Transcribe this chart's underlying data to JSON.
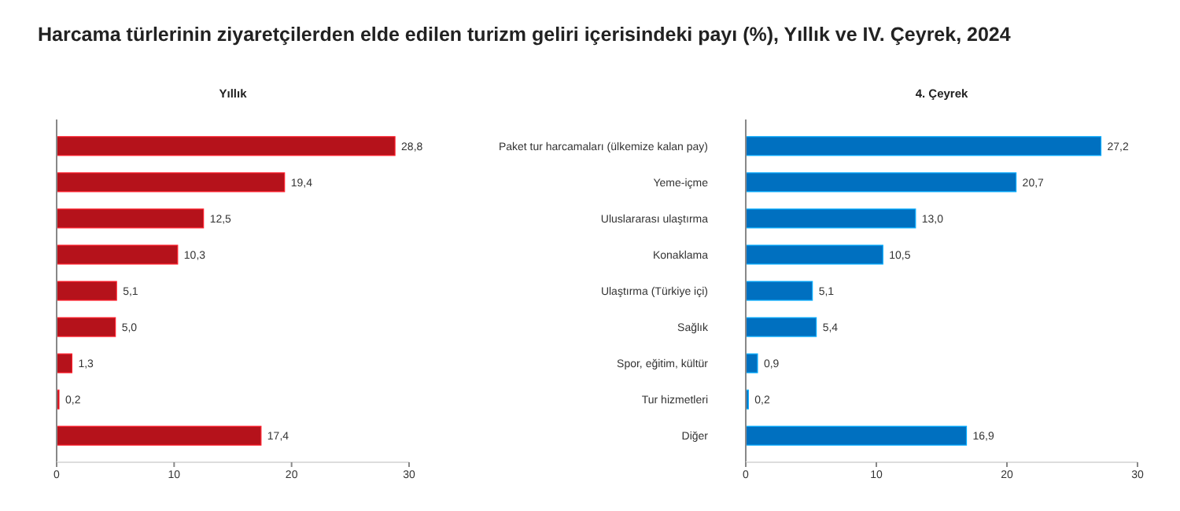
{
  "chart_data": [
    {
      "type": "bar",
      "orientation": "horizontal",
      "title": "Harcama türlerinin ziyaretçilerden elde edilen turizm geliri içerisindeki payı (%), Yıllık ve IV. Çeyrek, 2024",
      "subtitle": "Yıllık",
      "categories": [
        null,
        null,
        null,
        null,
        null,
        null,
        null,
        null,
        null
      ],
      "tick_labels": "x",
      "series": [
        {
          "color": "#b5121b",
          "values": [
            28.8,
            19.4,
            12.5,
            10.3,
            5.1,
            5.0,
            1.3,
            0.2,
            17.4
          ],
          "value_labels": [
            "28,8",
            "19,4",
            "12,5",
            "10,3",
            "5,1",
            "5,0",
            "1,3",
            "0,2",
            "17,4"
          ]
        }
      ],
      "xlim": [
        0,
        30
      ],
      "xticks": [
        0,
        10,
        20,
        30
      ],
      "grid": false
    },
    {
      "type": "bar",
      "orientation": "horizontal",
      "subtitle": "4. Çeyrek",
      "categories": [
        "Paket tur harcamaları (ülkemize kalan pay)",
        "Yeme-içme",
        "Uluslararası ulaştırma",
        "Konaklama",
        "Ulaştırma (Türkiye içi)",
        "Sağlık",
        "Spor, eğitim, kültür",
        "Tur hizmetleri",
        "Diğer"
      ],
      "series": [
        {
          "color": "#0070c0",
          "values": [
            27.2,
            20.7,
            13.0,
            10.5,
            5.1,
            5.4,
            0.9,
            0.2,
            16.9
          ],
          "value_labels": [
            "27,2",
            "20,7",
            "13,0",
            "10,5",
            "5,1",
            "5,4",
            "0,9",
            "0,2",
            "16,9"
          ]
        }
      ],
      "xlim": [
        0,
        30
      ],
      "xticks": [
        0,
        10,
        20,
        30
      ],
      "grid": false
    }
  ]
}
